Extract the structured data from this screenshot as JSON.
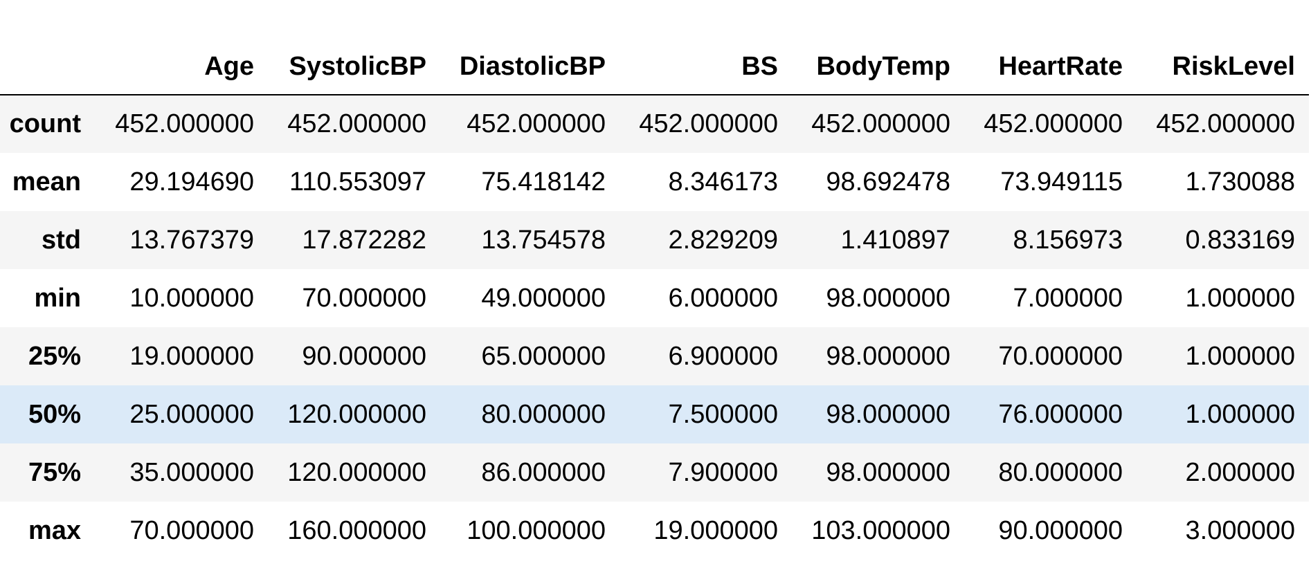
{
  "table": {
    "columns": [
      "Age",
      "SystolicBP",
      "DiastolicBP",
      "BS",
      "BodyTemp",
      "HeartRate",
      "RiskLevel"
    ],
    "rows": [
      {
        "label": "count",
        "values": [
          "452.000000",
          "452.000000",
          "452.000000",
          "452.000000",
          "452.000000",
          "452.000000",
          "452.000000"
        ]
      },
      {
        "label": "mean",
        "values": [
          "29.194690",
          "110.553097",
          "75.418142",
          "8.346173",
          "98.692478",
          "73.949115",
          "1.730088"
        ]
      },
      {
        "label": "std",
        "values": [
          "13.767379",
          "17.872282",
          "13.754578",
          "2.829209",
          "1.410897",
          "8.156973",
          "0.833169"
        ]
      },
      {
        "label": "min",
        "values": [
          "10.000000",
          "70.000000",
          "49.000000",
          "6.000000",
          "98.000000",
          "7.000000",
          "1.000000"
        ]
      },
      {
        "label": "25%",
        "values": [
          "19.000000",
          "90.000000",
          "65.000000",
          "6.900000",
          "98.000000",
          "70.000000",
          "1.000000"
        ]
      },
      {
        "label": "50%",
        "values": [
          "25.000000",
          "120.000000",
          "80.000000",
          "7.500000",
          "98.000000",
          "76.000000",
          "1.000000"
        ]
      },
      {
        "label": "75%",
        "values": [
          "35.000000",
          "120.000000",
          "86.000000",
          "7.900000",
          "98.000000",
          "80.000000",
          "2.000000"
        ]
      },
      {
        "label": "max",
        "values": [
          "70.000000",
          "160.000000",
          "100.000000",
          "19.000000",
          "103.000000",
          "90.000000",
          "3.000000"
        ]
      }
    ],
    "highlighted_row": "50%"
  },
  "colors": {
    "stripe": "#f5f5f5",
    "highlight": "#dbeaf8",
    "text": "#000000",
    "header_rule": "#000000"
  }
}
